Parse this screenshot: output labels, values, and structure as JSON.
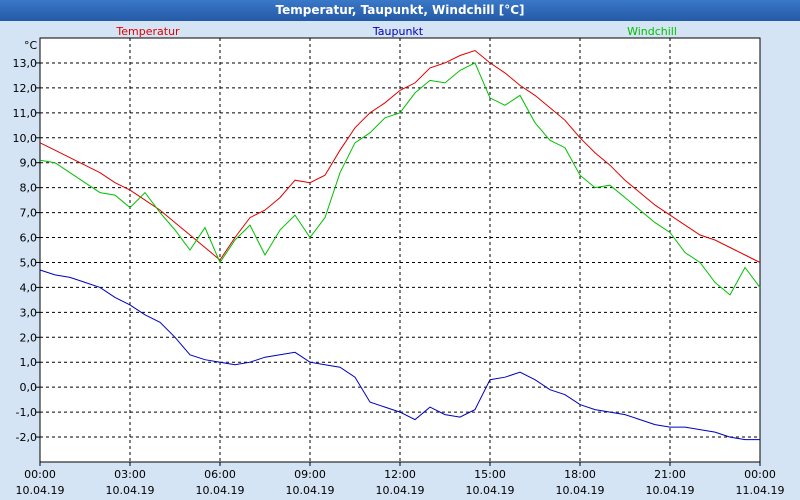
{
  "window": {
    "title": "Temperatur, Taupunkt, Windchill [°C]"
  },
  "chart_data": {
    "type": "line",
    "title": "Temperatur, Taupunkt, Windchill [°C]",
    "ylabel": "°C",
    "xlabel": "",
    "ylim": [
      -3.0,
      14.0
    ],
    "xlim": [
      0,
      24
    ],
    "grid": true,
    "legend": "top",
    "yticks": [
      -2.0,
      -1.0,
      0.0,
      1.0,
      2.0,
      3.0,
      4.0,
      5.0,
      6.0,
      7.0,
      8.0,
      9.0,
      10.0,
      11.0,
      12.0,
      13.0
    ],
    "ytick_labels": [
      "-2,0",
      "-1,0",
      "0,0",
      "1,0",
      "2,0",
      "3,0",
      "4,0",
      "5,0",
      "6,0",
      "7,0",
      "8,0",
      "9,0",
      "10,0",
      "11,0",
      "12,0",
      "13,0"
    ],
    "xticks": [
      {
        "time": "00:00",
        "date": "10.04.19",
        "hour": 0
      },
      {
        "time": "03:00",
        "date": "10.04.19",
        "hour": 3
      },
      {
        "time": "06:00",
        "date": "10.04.19",
        "hour": 6
      },
      {
        "time": "09:00",
        "date": "10.04.19",
        "hour": 9
      },
      {
        "time": "12:00",
        "date": "10.04.19",
        "hour": 12
      },
      {
        "time": "15:00",
        "date": "10.04.19",
        "hour": 15
      },
      {
        "time": "18:00",
        "date": "10.04.19",
        "hour": 18
      },
      {
        "time": "21:00",
        "date": "10.04.19",
        "hour": 21
      },
      {
        "time": "00:00",
        "date": "11.04.19",
        "hour": 24
      }
    ],
    "series": [
      {
        "name": "Temperatur",
        "color": "#e00000",
        "x": [
          0,
          0.5,
          1,
          1.5,
          2,
          2.5,
          3,
          3.5,
          4,
          4.5,
          5,
          5.5,
          6,
          6.5,
          7,
          7.5,
          8,
          8.5,
          9,
          9.5,
          10,
          10.5,
          11,
          11.5,
          12,
          12.5,
          13,
          13.5,
          14,
          14.5,
          15,
          15.5,
          16,
          16.5,
          17,
          17.5,
          18,
          18.5,
          19,
          19.5,
          20,
          20.5,
          21,
          21.5,
          22,
          22.5,
          23,
          23.5,
          24
        ],
        "values": [
          9.8,
          9.5,
          9.2,
          8.9,
          8.6,
          8.2,
          7.9,
          7.5,
          7.1,
          6.6,
          6.1,
          5.6,
          5.1,
          6.0,
          6.8,
          7.1,
          7.6,
          8.3,
          8.2,
          8.5,
          9.5,
          10.4,
          11.0,
          11.4,
          11.9,
          12.2,
          12.8,
          13.0,
          13.3,
          13.5,
          13.0,
          12.6,
          12.1,
          11.7,
          11.2,
          10.7,
          10.0,
          9.4,
          8.9,
          8.3,
          7.8,
          7.3,
          6.9,
          6.5,
          6.1,
          5.9,
          5.6,
          5.3,
          5.0
        ]
      },
      {
        "name": "Taupunkt",
        "color": "#0000c0",
        "x": [
          0,
          0.5,
          1,
          1.5,
          2,
          2.5,
          3,
          3.5,
          4,
          4.5,
          5,
          5.5,
          6,
          6.5,
          7,
          7.5,
          8,
          8.5,
          9,
          9.5,
          10,
          10.5,
          11,
          11.5,
          12,
          12.5,
          13,
          13.5,
          14,
          14.5,
          15,
          15.5,
          16,
          16.5,
          17,
          17.5,
          18,
          18.5,
          19,
          19.5,
          20,
          20.5,
          21,
          21.5,
          22,
          22.5,
          23,
          23.5,
          24
        ],
        "values": [
          4.7,
          4.5,
          4.4,
          4.2,
          4.0,
          3.6,
          3.3,
          2.9,
          2.6,
          2.0,
          1.3,
          1.1,
          1.0,
          0.9,
          1.0,
          1.2,
          1.3,
          1.4,
          1.0,
          0.9,
          0.8,
          0.4,
          -0.6,
          -0.8,
          -1.0,
          -1.3,
          -0.8,
          -1.1,
          -1.2,
          -0.9,
          0.3,
          0.4,
          0.6,
          0.3,
          -0.1,
          -0.3,
          -0.7,
          -0.9,
          -1.0,
          -1.1,
          -1.3,
          -1.5,
          -1.6,
          -1.6,
          -1.7,
          -1.8,
          -2.0,
          -2.1,
          -2.1
        ]
      },
      {
        "name": "Windchill",
        "color": "#00c000",
        "x": [
          0,
          0.5,
          1,
          1.5,
          2,
          2.5,
          3,
          3.5,
          4,
          4.5,
          5,
          5.5,
          6,
          6.5,
          7,
          7.5,
          8,
          8.5,
          9,
          9.5,
          10,
          10.5,
          11,
          11.5,
          12,
          12.5,
          13,
          13.5,
          14,
          14.5,
          15,
          15.5,
          16,
          16.5,
          17,
          17.5,
          18,
          18.5,
          19,
          19.5,
          20,
          20.5,
          21,
          21.5,
          22,
          22.5,
          23,
          23.5,
          24
        ],
        "values": [
          9.1,
          9.0,
          8.6,
          8.2,
          7.8,
          7.7,
          7.2,
          7.8,
          7.0,
          6.3,
          5.5,
          6.4,
          5.0,
          5.9,
          6.5,
          5.3,
          6.3,
          6.9,
          6.0,
          6.8,
          8.6,
          9.8,
          10.2,
          10.8,
          11.0,
          11.8,
          12.3,
          12.2,
          12.7,
          13.0,
          11.6,
          11.3,
          11.7,
          10.6,
          9.9,
          9.6,
          8.5,
          8.0,
          8.1,
          7.6,
          7.1,
          6.6,
          6.2,
          5.4,
          5.0,
          4.2,
          3.7,
          4.8,
          4.0
        ]
      }
    ]
  }
}
